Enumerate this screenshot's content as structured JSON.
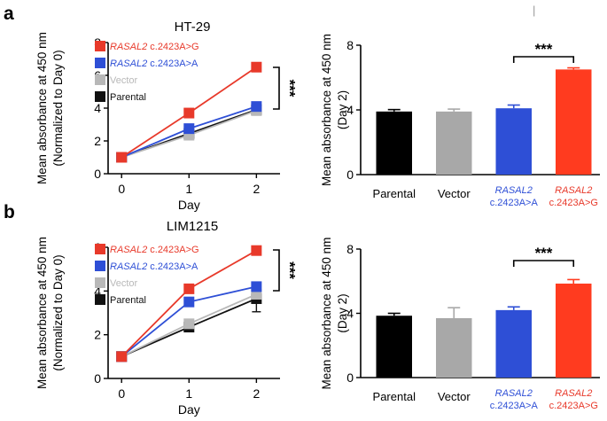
{
  "figure": {
    "panel_a": "a",
    "panel_b": "b",
    "top_right_mark": "|"
  },
  "chart_data": [
    {
      "id": "a_line",
      "type": "line",
      "title": "HT-29",
      "xlabel": "Day",
      "ylabel_lines": [
        "Mean absorbance at 450 nm",
        "(Normalized to Day 0)"
      ],
      "x": [
        0,
        1,
        2
      ],
      "xticks": [
        "0",
        "1",
        "2"
      ],
      "xlim": [
        -0.2,
        2.35
      ],
      "ylim": [
        0,
        8
      ],
      "yticks": [
        "0",
        "2",
        "4",
        "6",
        "8"
      ],
      "series": [
        {
          "name": "RASAL2 c.2423A>G",
          "gene": "RASAL2",
          "variant": " c.2423A>G",
          "color": "#e8392a",
          "values": [
            1.0,
            3.7,
            6.5
          ],
          "err": [
            0,
            0.1,
            0.1
          ]
        },
        {
          "name": "RASAL2 c.2423A>A",
          "gene": "RASAL2",
          "variant": " c.2423A>A",
          "color": "#2e4fd6",
          "values": [
            1.0,
            2.75,
            4.1
          ],
          "err": [
            0,
            0.1,
            0.15
          ]
        },
        {
          "name": "Vector",
          "gene": "",
          "variant": "Vector",
          "color": "#b8b8b8",
          "values": [
            1.0,
            2.35,
            3.85
          ],
          "err": [
            0,
            0.1,
            0.1
          ]
        },
        {
          "name": "Parental",
          "gene": "",
          "variant": "Parental",
          "color": "#111111",
          "values": [
            1.0,
            2.45,
            3.9
          ],
          "err": [
            0,
            0.1,
            0.1
          ]
        }
      ],
      "significance": "***"
    },
    {
      "id": "a_bar",
      "type": "bar",
      "title": "",
      "ylabel_lines": [
        "Mean absorbance at 450 nm",
        "(Day 2)"
      ],
      "ylim": [
        0,
        8
      ],
      "yticks": [
        "0",
        "4",
        "8"
      ],
      "categories": [
        {
          "line1": "Parental",
          "line2": "",
          "italic": false,
          "color": "#000000",
          "label_color": "#000000"
        },
        {
          "line1": "Vector",
          "line2": "",
          "italic": false,
          "color": "#a8a8a8",
          "label_color": "#b0b0b0"
        },
        {
          "line1": "RASAL2",
          "line2": "c.2423A>A",
          "italic": true,
          "color": "#2e4fd6",
          "label_color": "#2e4fd6"
        },
        {
          "line1": "RASAL2",
          "line2": "c.2423A>G",
          "italic": true,
          "color": "#ff3b1f",
          "label_color": "#e8392a"
        }
      ],
      "values": [
        3.9,
        3.9,
        4.1,
        6.5
      ],
      "err": [
        0.12,
        0.15,
        0.2,
        0.1
      ],
      "significance": "***",
      "significance_between": [
        2,
        3
      ]
    },
    {
      "id": "b_line",
      "type": "line",
      "title": "LIM1215",
      "xlabel": "Day",
      "ylabel_lines": [
        "Mean absorbance at 450 nm",
        "(Normalized to Day 0)"
      ],
      "x": [
        0,
        1,
        2
      ],
      "xticks": [
        "0",
        "1",
        "2"
      ],
      "xlim": [
        -0.2,
        2.35
      ],
      "ylim": [
        0,
        6
      ],
      "yticks": [
        "0",
        "2",
        "4",
        "6"
      ],
      "series": [
        {
          "name": "RASAL2 c.2423A>G",
          "gene": "RASAL2",
          "variant": " c.2423A>G",
          "color": "#e8392a",
          "values": [
            1.0,
            4.1,
            5.85
          ],
          "err": [
            0,
            0.12,
            0.15
          ]
        },
        {
          "name": "RASAL2 c.2423A>A",
          "gene": "RASAL2",
          "variant": " c.2423A>A",
          "color": "#2e4fd6",
          "values": [
            1.0,
            3.5,
            4.2
          ],
          "err": [
            0,
            0.12,
            0.15
          ]
        },
        {
          "name": "Vector",
          "gene": "",
          "variant": "Vector",
          "color": "#b8b8b8",
          "values": [
            1.0,
            2.5,
            3.85
          ],
          "err": [
            0,
            0.1,
            0.15
          ]
        },
        {
          "name": "Parental",
          "gene": "",
          "variant": "Parental",
          "color": "#111111",
          "values": [
            1.0,
            2.35,
            3.65
          ],
          "err": [
            0,
            0.1,
            0.6
          ]
        }
      ],
      "significance": "***"
    },
    {
      "id": "b_bar",
      "type": "bar",
      "title": "",
      "ylabel_lines": [
        "Mean absorbance at 450 nm",
        "(Day 2)"
      ],
      "ylim": [
        0,
        8
      ],
      "yticks": [
        "0",
        "4",
        "8"
      ],
      "categories": [
        {
          "line1": "Parental",
          "line2": "",
          "italic": false,
          "color": "#000000",
          "label_color": "#000000"
        },
        {
          "line1": "Vector",
          "line2": "",
          "italic": false,
          "color": "#a8a8a8",
          "label_color": "#b0b0b0"
        },
        {
          "line1": "RASAL2",
          "line2": "c.2423A>A",
          "italic": true,
          "color": "#2e4fd6",
          "label_color": "#2e4fd6"
        },
        {
          "line1": "RASAL2",
          "line2": "c.2423A>G",
          "italic": true,
          "color": "#ff3b1f",
          "label_color": "#e8392a"
        }
      ],
      "values": [
        3.85,
        3.7,
        4.2,
        5.85
      ],
      "err": [
        0.15,
        0.65,
        0.2,
        0.25
      ],
      "significance": "***",
      "significance_between": [
        2,
        3
      ]
    }
  ]
}
